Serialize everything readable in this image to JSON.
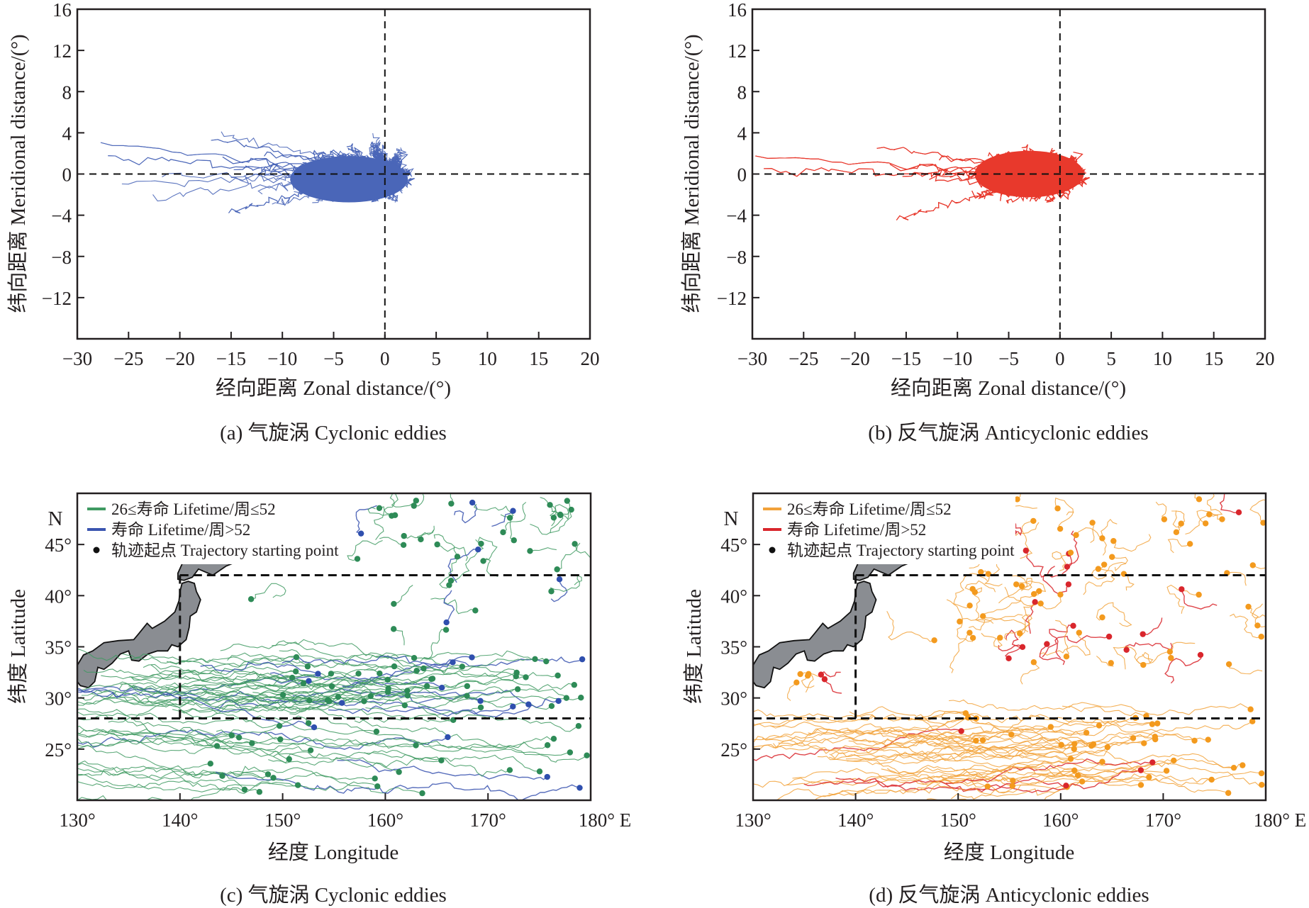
{
  "chart_data": [
    {
      "id": "a",
      "type": "line",
      "title": "(a) 气旋涡 Cyclonic eddies",
      "xlabel": "经向距离 Zonal distance/(°)",
      "ylabel": "纬向距离 Meridional distance/(°)",
      "xlim": [
        -30,
        20
      ],
      "ylim": [
        -16,
        16
      ],
      "xticks": [
        -30,
        -25,
        -20,
        -15,
        -10,
        -5,
        0,
        5,
        10,
        15,
        20
      ],
      "xtick_labels": [
        "−30",
        "−25",
        "−20",
        "−15",
        "−10",
        "−5",
        "0",
        "5",
        "10",
        "15",
        "20"
      ],
      "yticks": [
        16,
        12,
        8,
        4,
        0,
        -4,
        -8,
        -12
      ],
      "ytick_labels": [
        "16",
        "12",
        "8",
        "4",
        "0",
        "−4",
        "−8",
        "−12"
      ],
      "reference_lines": {
        "x": 0,
        "y": 0,
        "style": "dashed"
      },
      "color": "#4a66b8",
      "series_description": "Relative trajectories of cyclonic eddies from origin (0,0); dense core spanning about x −10..4, y −3..2; outliers reaching x≈−28 and y from ≈−6.5 to ≈5",
      "extent": {
        "x_min": -28,
        "x_max": 7,
        "y_min": -6.7,
        "y_max": 5.3
      },
      "core": {
        "x_min": -10,
        "x_max": 4,
        "y_min": -3.5,
        "y_max": 2.5
      },
      "trajectory_count_est": 500
    },
    {
      "id": "b",
      "type": "line",
      "title": "(b) 反气旋涡 Anticyclonic eddies",
      "xlabel": "经向距离 Zonal distance/(°)",
      "ylabel": "纬向距离 Meridional distance/(°)",
      "xlim": [
        -30,
        20
      ],
      "ylim": [
        -16,
        16
      ],
      "xticks": [
        -30,
        -25,
        -20,
        -15,
        -10,
        -5,
        0,
        5,
        10,
        15,
        20
      ],
      "xtick_labels": [
        "−30",
        "−25",
        "−20",
        "−15",
        "−10",
        "−5",
        "0",
        "5",
        "10",
        "15",
        "20"
      ],
      "yticks": [
        16,
        12,
        8,
        4,
        0,
        -4,
        -8,
        -12
      ],
      "ytick_labels": [
        "16",
        "12",
        "8",
        "4",
        "0",
        "−4",
        "−8",
        "−12"
      ],
      "reference_lines": {
        "x": 0,
        "y": 0,
        "style": "dashed"
      },
      "color": "#e8392c",
      "series_description": "Relative trajectories of anticyclonic eddies from origin; dense core spanning about x −9..4, y −3..3; long westward tails to x≈−30 (y≈−4); outliers to x≈8, y≈6",
      "extent": {
        "x_min": -30,
        "x_max": 8,
        "y_min": -5.8,
        "y_max": 6
      },
      "core": {
        "x_min": -9,
        "x_max": 4,
        "y_min": -3,
        "y_max": 3
      },
      "trajectory_count_est": 500
    },
    {
      "id": "c",
      "type": "line",
      "title": "(c) 气旋涡 Cyclonic eddies",
      "xlabel": "经度 Longitude",
      "ylabel": "纬度 Latitude",
      "xlim": [
        130,
        180
      ],
      "ylim": [
        20,
        50
      ],
      "xticks": [
        130,
        140,
        150,
        160,
        170,
        180
      ],
      "xtick_labels": [
        "130°",
        "140°",
        "150°",
        "160°",
        "170°",
        "180° E"
      ],
      "yticks": [
        25,
        30,
        35,
        40,
        45
      ],
      "ytick_labels": [
        "25°",
        "30°",
        "35°",
        "40°",
        "45°"
      ],
      "north_label": "N",
      "region_box": {
        "lon_min": 140,
        "lon_max": 180,
        "lat_min": 28,
        "lat_max": 42,
        "style": "dashed"
      },
      "legend": {
        "position": "top-left",
        "entries": [
          {
            "label": "26≤寿命 Lifetime/周≤52",
            "color": "#3f9a62",
            "marker": "line"
          },
          {
            "label": "寿命 Lifetime/周>52",
            "color": "#3b55b0",
            "marker": "line"
          },
          {
            "label": "轨迹起点 Trajectory starting point",
            "color": "#111111",
            "marker": "dot"
          }
        ]
      },
      "series": [
        {
          "name": "26≤寿命 Lifetime/周≤52",
          "color": "#3f9a62",
          "dot_color": "#2e8b57",
          "description": "Mostly westward trajectories; dense band 29–34°N, second band 20–28°N, scattered tracks north of 42°N"
        },
        {
          "name": "寿命 Lifetime/周>52",
          "color": "#3b55b0",
          "dot_color": "#2f4fae",
          "description": "Fewer long-lived westward tracks, mainly 29–34°N"
        }
      ],
      "land_color": "#8a8d92"
    },
    {
      "id": "d",
      "type": "line",
      "title": "(d) 反气旋涡 Anticyclonic eddies",
      "xlabel": "经度 Longitude",
      "ylabel": "纬度 Latitude",
      "xlim": [
        130,
        180
      ],
      "ylim": [
        20,
        50
      ],
      "xticks": [
        130,
        140,
        150,
        160,
        170,
        180
      ],
      "xtick_labels": [
        "130°",
        "140°",
        "150°",
        "160°",
        "170°",
        "180° E"
      ],
      "yticks": [
        25,
        30,
        35,
        40,
        45
      ],
      "ytick_labels": [
        "25°",
        "30°",
        "35°",
        "40°",
        "45°"
      ],
      "north_label": "N",
      "region_box": {
        "lon_min": 140,
        "lon_max": 180,
        "lat_min": 28,
        "lat_max": 42,
        "style": "dashed"
      },
      "legend": {
        "position": "top-left",
        "entries": [
          {
            "label": "26≤寿命 Lifetime/周≤52",
            "color": "#f2a23a",
            "marker": "line"
          },
          {
            "label": "寿命 Lifetime/周>52",
            "color": "#d9262c",
            "marker": "line"
          },
          {
            "label": "轨迹起点 Trajectory starting point",
            "color": "#111111",
            "marker": "dot"
          }
        ]
      },
      "series": [
        {
          "name": "26≤寿命 Lifetime/周≤52",
          "color": "#f2a23a",
          "dot_color": "#f39a1e",
          "description": "Westward tracks in 20–30°N band; many tracks 33–42°N near Kuroshio Extension and north of 42°N"
        },
        {
          "name": "寿命 Lifetime/周>52",
          "color": "#d9262c",
          "dot_color": "#d9262c",
          "description": "Long-lived tracks concentrated near 144–150°E, 38–42°N and along 23–28°N"
        }
      ],
      "land_color": "#8a8d92"
    }
  ]
}
